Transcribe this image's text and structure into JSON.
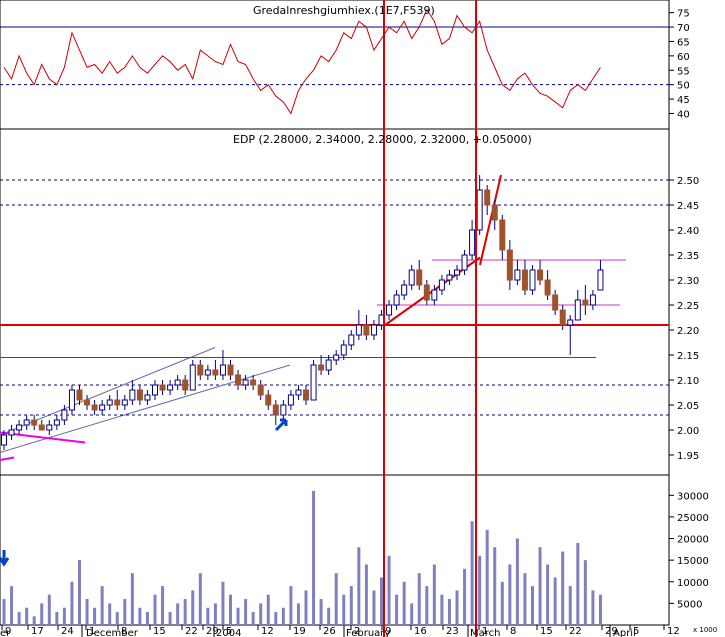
{
  "chart_data": {
    "type": "candlestick",
    "price_panel": {
      "title": "EDP (2.28000, 2.34000, 2.28000, 2.32000, +0.05000)",
      "ylim": [
        1.92,
        2.56
      ],
      "yticks": [
        "1.95",
        "2.00",
        "2.05",
        "2.10",
        "2.15",
        "2.20",
        "2.25",
        "2.30",
        "2.35",
        "2.40",
        "2.45",
        "2.50"
      ],
      "colors": {
        "up": "#ffffff",
        "down": "#a0522d",
        "outline": "#00008b"
      },
      "candles": [
        {
          "o": 1.97,
          "h": 2.0,
          "l": 1.96,
          "c": 1.99
        },
        {
          "o": 1.99,
          "h": 2.01,
          "l": 1.98,
          "c": 2.0
        },
        {
          "o": 2.0,
          "h": 2.02,
          "l": 1.99,
          "c": 2.01
        },
        {
          "o": 2.01,
          "h": 2.03,
          "l": 2.0,
          "c": 2.02
        },
        {
          "o": 2.02,
          "h": 2.03,
          "l": 2.0,
          "c": 2.01
        },
        {
          "o": 2.01,
          "h": 2.02,
          "l": 2.0,
          "c": 2.0
        },
        {
          "o": 2.0,
          "h": 2.02,
          "l": 1.99,
          "c": 2.01
        },
        {
          "o": 2.01,
          "h": 2.03,
          "l": 2.0,
          "c": 2.02
        },
        {
          "o": 2.02,
          "h": 2.05,
          "l": 2.01,
          "c": 2.04
        },
        {
          "o": 2.04,
          "h": 2.09,
          "l": 2.03,
          "c": 2.08
        },
        {
          "o": 2.08,
          "h": 2.09,
          "l": 2.05,
          "c": 2.06
        },
        {
          "o": 2.06,
          "h": 2.07,
          "l": 2.04,
          "c": 2.05
        },
        {
          "o": 2.05,
          "h": 2.06,
          "l": 2.03,
          "c": 2.04
        },
        {
          "o": 2.04,
          "h": 2.06,
          "l": 2.03,
          "c": 2.05
        },
        {
          "o": 2.05,
          "h": 2.07,
          "l": 2.04,
          "c": 2.06
        },
        {
          "o": 2.06,
          "h": 2.08,
          "l": 2.04,
          "c": 2.05
        },
        {
          "o": 2.05,
          "h": 2.07,
          "l": 2.04,
          "c": 2.06
        },
        {
          "o": 2.06,
          "h": 2.1,
          "l": 2.05,
          "c": 2.08
        },
        {
          "o": 2.08,
          "h": 2.09,
          "l": 2.05,
          "c": 2.06
        },
        {
          "o": 2.06,
          "h": 2.08,
          "l": 2.05,
          "c": 2.07
        },
        {
          "o": 2.07,
          "h": 2.1,
          "l": 2.06,
          "c": 2.09
        },
        {
          "o": 2.09,
          "h": 2.1,
          "l": 2.07,
          "c": 2.08
        },
        {
          "o": 2.08,
          "h": 2.1,
          "l": 2.07,
          "c": 2.09
        },
        {
          "o": 2.09,
          "h": 2.11,
          "l": 2.08,
          "c": 2.1
        },
        {
          "o": 2.1,
          "h": 2.11,
          "l": 2.07,
          "c": 2.08
        },
        {
          "o": 2.08,
          "h": 2.14,
          "l": 2.08,
          "c": 2.13
        },
        {
          "o": 2.13,
          "h": 2.14,
          "l": 2.1,
          "c": 2.11
        },
        {
          "o": 2.11,
          "h": 2.13,
          "l": 2.1,
          "c": 2.12
        },
        {
          "o": 2.12,
          "h": 2.14,
          "l": 2.1,
          "c": 2.11
        },
        {
          "o": 2.11,
          "h": 2.16,
          "l": 2.1,
          "c": 2.13
        },
        {
          "o": 2.13,
          "h": 2.14,
          "l": 2.1,
          "c": 2.11
        },
        {
          "o": 2.11,
          "h": 2.12,
          "l": 2.08,
          "c": 2.09
        },
        {
          "o": 2.09,
          "h": 2.11,
          "l": 2.08,
          "c": 2.1
        },
        {
          "o": 2.1,
          "h": 2.11,
          "l": 2.08,
          "c": 2.09
        },
        {
          "o": 2.09,
          "h": 2.1,
          "l": 2.06,
          "c": 2.07
        },
        {
          "o": 2.07,
          "h": 2.08,
          "l": 2.04,
          "c": 2.05
        },
        {
          "o": 2.05,
          "h": 2.06,
          "l": 2.01,
          "c": 2.03
        },
        {
          "o": 2.03,
          "h": 2.06,
          "l": 2.02,
          "c": 2.05
        },
        {
          "o": 2.05,
          "h": 2.08,
          "l": 2.04,
          "c": 2.07
        },
        {
          "o": 2.07,
          "h": 2.09,
          "l": 2.06,
          "c": 2.08
        },
        {
          "o": 2.08,
          "h": 2.09,
          "l": 2.05,
          "c": 2.06
        },
        {
          "o": 2.06,
          "h": 2.14,
          "l": 2.06,
          "c": 2.13
        },
        {
          "o": 2.13,
          "h": 2.15,
          "l": 2.11,
          "c": 2.12
        },
        {
          "o": 2.12,
          "h": 2.15,
          "l": 2.11,
          "c": 2.14
        },
        {
          "o": 2.14,
          "h": 2.16,
          "l": 2.13,
          "c": 2.15
        },
        {
          "o": 2.15,
          "h": 2.18,
          "l": 2.14,
          "c": 2.17
        },
        {
          "o": 2.17,
          "h": 2.2,
          "l": 2.16,
          "c": 2.19
        },
        {
          "o": 2.19,
          "h": 2.24,
          "l": 2.18,
          "c": 2.21
        },
        {
          "o": 2.21,
          "h": 2.23,
          "l": 2.18,
          "c": 2.19
        },
        {
          "o": 2.19,
          "h": 2.22,
          "l": 2.18,
          "c": 2.21
        },
        {
          "o": 2.21,
          "h": 2.24,
          "l": 2.2,
          "c": 2.23
        },
        {
          "o": 2.23,
          "h": 2.26,
          "l": 2.22,
          "c": 2.25
        },
        {
          "o": 2.25,
          "h": 2.28,
          "l": 2.24,
          "c": 2.27
        },
        {
          "o": 2.27,
          "h": 2.3,
          "l": 2.26,
          "c": 2.29
        },
        {
          "o": 2.29,
          "h": 2.33,
          "l": 2.28,
          "c": 2.32
        },
        {
          "o": 2.32,
          "h": 2.34,
          "l": 2.28,
          "c": 2.29
        },
        {
          "o": 2.29,
          "h": 2.3,
          "l": 2.25,
          "c": 2.26
        },
        {
          "o": 2.26,
          "h": 2.29,
          "l": 2.25,
          "c": 2.28
        },
        {
          "o": 2.28,
          "h": 2.31,
          "l": 2.27,
          "c": 2.3
        },
        {
          "o": 2.3,
          "h": 2.32,
          "l": 2.29,
          "c": 2.31
        },
        {
          "o": 2.31,
          "h": 2.33,
          "l": 2.3,
          "c": 2.32
        },
        {
          "o": 2.32,
          "h": 2.36,
          "l": 2.31,
          "c": 2.35
        },
        {
          "o": 2.35,
          "h": 2.42,
          "l": 2.34,
          "c": 2.4
        },
        {
          "o": 2.4,
          "h": 2.51,
          "l": 2.39,
          "c": 2.48
        },
        {
          "o": 2.48,
          "h": 2.49,
          "l": 2.43,
          "c": 2.45
        },
        {
          "o": 2.45,
          "h": 2.46,
          "l": 2.4,
          "c": 2.42
        },
        {
          "o": 2.42,
          "h": 2.43,
          "l": 2.34,
          "c": 2.36
        },
        {
          "o": 2.36,
          "h": 2.38,
          "l": 2.28,
          "c": 2.3
        },
        {
          "o": 2.3,
          "h": 2.34,
          "l": 2.29,
          "c": 2.32
        },
        {
          "o": 2.32,
          "h": 2.34,
          "l": 2.27,
          "c": 2.28
        },
        {
          "o": 2.28,
          "h": 2.33,
          "l": 2.27,
          "c": 2.32
        },
        {
          "o": 2.32,
          "h": 2.34,
          "l": 2.29,
          "c": 2.3
        },
        {
          "o": 2.3,
          "h": 2.32,
          "l": 2.26,
          "c": 2.27
        },
        {
          "o": 2.27,
          "h": 2.28,
          "l": 2.23,
          "c": 2.24
        },
        {
          "o": 2.24,
          "h": 2.25,
          "l": 2.2,
          "c": 2.21
        },
        {
          "o": 2.21,
          "h": 2.23,
          "l": 2.15,
          "c": 2.22
        },
        {
          "o": 2.22,
          "h": 2.28,
          "l": 2.22,
          "c": 2.26
        },
        {
          "o": 2.26,
          "h": 2.29,
          "l": 2.23,
          "c": 2.25
        },
        {
          "o": 2.25,
          "h": 2.28,
          "l": 2.24,
          "c": 2.27
        },
        {
          "o": 2.28,
          "h": 2.34,
          "l": 2.28,
          "c": 2.32
        }
      ]
    },
    "rsi_panel": {
      "title_overlap": "Gredalnreshgiumhiex.(1E7,F539)",
      "ylim": [
        36,
        78
      ],
      "yticks": [
        "40",
        "45",
        "50",
        "55",
        "60",
        "65",
        "70",
        "75"
      ],
      "reference_lines": [
        70,
        50
      ],
      "values": [
        56,
        52,
        60,
        54,
        50,
        57,
        52,
        50,
        56,
        68,
        62,
        56,
        57,
        54,
        58,
        54,
        56,
        60,
        56,
        54,
        57,
        60,
        58,
        55,
        57,
        52,
        62,
        60,
        58,
        57,
        64,
        58,
        57,
        52,
        48,
        50,
        46,
        44,
        40,
        48,
        52,
        55,
        60,
        58,
        62,
        68,
        66,
        72,
        70,
        62,
        66,
        70,
        68,
        72,
        66,
        70,
        76,
        72,
        64,
        66,
        74,
        70,
        68,
        72,
        62,
        56,
        50,
        48,
        52,
        54,
        50,
        47,
        46,
        44,
        42,
        48,
        50,
        48,
        52,
        56
      ]
    },
    "volume_panel": {
      "ylim": [
        0,
        34000
      ],
      "yticks": [
        "5000",
        "10000",
        "15000",
        "20000",
        "25000",
        "30000"
      ],
      "color": "#8080c0",
      "values": [
        6000,
        9000,
        3000,
        4000,
        2000,
        5000,
        7000,
        3000,
        4000,
        10000,
        15000,
        6000,
        4000,
        9000,
        5000,
        3000,
        6000,
        12000,
        4000,
        3000,
        7000,
        9000,
        3000,
        5000,
        6000,
        8000,
        12000,
        4000,
        5000,
        10000,
        7000,
        4000,
        6000,
        3000,
        5000,
        7000,
        3000,
        4000,
        9000,
        5000,
        8000,
        31000,
        6000,
        4000,
        12000,
        7000,
        9000,
        18000,
        14000,
        8000,
        11000,
        16000,
        7000,
        10000,
        5000,
        12000,
        9000,
        14000,
        7000,
        6000,
        8000,
        13000,
        24000,
        16000,
        22000,
        18000,
        10000,
        14000,
        20000,
        12000,
        9000,
        18000,
        14000,
        11000,
        17000,
        9000,
        19000,
        15000,
        8000,
        7000
      ]
    },
    "x_axis": {
      "labels": [
        "0",
        "17",
        "24",
        "1",
        "8",
        "15",
        "22",
        "29",
        "5",
        "12",
        "19",
        "26",
        "2",
        "9",
        "16",
        "23",
        "1",
        "8",
        "15",
        "22",
        "29",
        "5",
        "12"
      ],
      "month_labels": [
        "er",
        "December",
        "2004",
        "February",
        "March",
        "April"
      ]
    },
    "annotations": {
      "blue_arrows": true,
      "red_vertical_lines": 2,
      "support_resistance_lines": [
        2.21,
        2.145,
        2.03,
        2.34,
        2.25
      ]
    }
  }
}
